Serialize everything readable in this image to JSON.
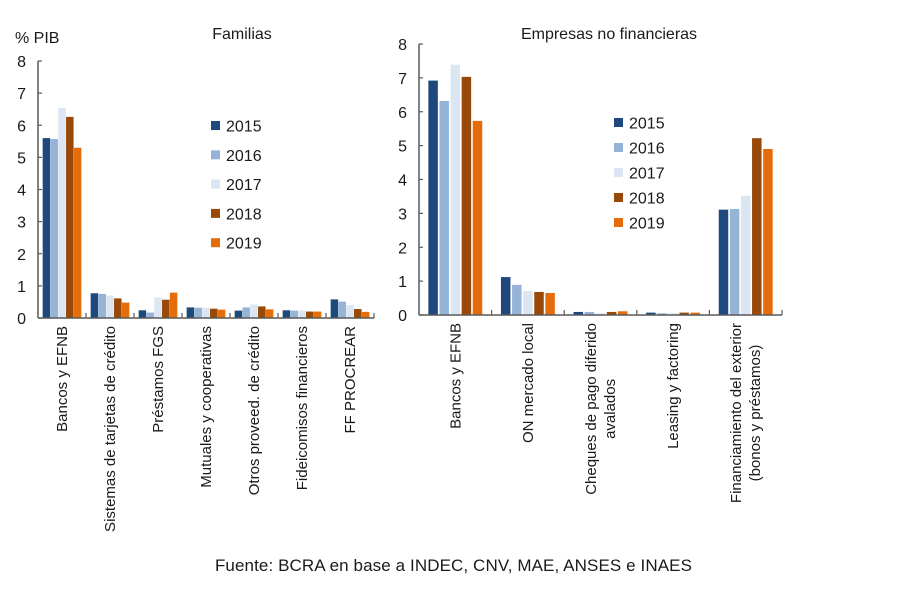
{
  "source_note": "Fuente: BCRA en base a INDEC, CNV, MAE, ANSES e INAES",
  "colors": {
    "2015": "#1F497D",
    "2016": "#95B3D7",
    "2017": "#DCE6F2",
    "2018": "#984807",
    "2019": "#E46C0A",
    "axis": "#595959"
  },
  "chart_data": [
    {
      "type": "bar",
      "title": "Familias",
      "ylabel": "% PIB",
      "xlabel": "",
      "ylim": [
        0,
        8
      ],
      "yticks": [
        "0",
        "1",
        "2",
        "3",
        "4",
        "5",
        "6",
        "7",
        "8"
      ],
      "grid": false,
      "legend_position": "center",
      "categories": [
        "Bancos y EFNB",
        "Sistemas de tarjetas de crédito",
        "Préstamos FGS",
        "Mutuales y cooperativas",
        "Otros proveed. de crédito",
        "Fideicomisos financieros",
        "FF PROCREAR"
      ],
      "series": [
        {
          "name": "2015",
          "values": [
            5.6,
            0.77,
            0.24,
            0.33,
            0.23,
            0.24,
            0.58
          ]
        },
        {
          "name": "2016",
          "values": [
            5.57,
            0.75,
            0.17,
            0.32,
            0.33,
            0.23,
            0.51
          ]
        },
        {
          "name": "2017",
          "values": [
            6.54,
            0.7,
            0.64,
            0.32,
            0.42,
            0.23,
            0.4
          ]
        },
        {
          "name": "2018",
          "values": [
            6.26,
            0.61,
            0.57,
            0.29,
            0.36,
            0.2,
            0.28
          ]
        },
        {
          "name": "2019",
          "values": [
            5.3,
            0.48,
            0.79,
            0.26,
            0.27,
            0.2,
            0.19
          ]
        }
      ]
    },
    {
      "type": "bar",
      "title": "Empresas no financieras",
      "ylabel": "",
      "xlabel": "",
      "ylim": [
        0,
        8
      ],
      "yticks": [
        "0",
        "1",
        "2",
        "3",
        "4",
        "5",
        "6",
        "7",
        "8"
      ],
      "grid": false,
      "legend_position": "center-right",
      "categories": [
        "Bancos y EFNB",
        "ON mercado local",
        "Cheques de pago diferido avalados",
        "Leasing y factoring",
        "Financiamiento del exterior (bonos y préstamos)"
      ],
      "category_label_lines": [
        [
          "Bancos y EFNB"
        ],
        [
          "ON mercado local"
        ],
        [
          "Cheques de pago diferido",
          "avalados"
        ],
        [
          "Leasing y factoring"
        ],
        [
          "Financiamiento del exterior",
          "(bonos y préstamos)"
        ]
      ],
      "series": [
        {
          "name": "2015",
          "values": [
            6.92,
            1.12,
            0.09,
            0.07,
            3.11
          ]
        },
        {
          "name": "2016",
          "values": [
            6.32,
            0.89,
            0.09,
            0.05,
            3.13
          ]
        },
        {
          "name": "2017",
          "values": [
            7.39,
            0.71,
            0.05,
            0.05,
            3.52
          ]
        },
        {
          "name": "2018",
          "values": [
            7.03,
            0.68,
            0.09,
            0.07,
            5.22
          ]
        },
        {
          "name": "2019",
          "values": [
            5.73,
            0.65,
            0.11,
            0.07,
            4.9
          ]
        }
      ]
    }
  ]
}
